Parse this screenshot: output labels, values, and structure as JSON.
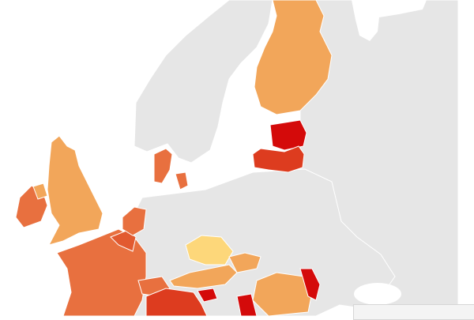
{
  "map": {
    "background": "#ffffff",
    "no_data_color": "#e6e6e6",
    "scale_colors": [
      "#fdd77a",
      "#f2a65a",
      "#e8703f",
      "#dd3c1f",
      "#d40a0a"
    ],
    "regions": [
      {
        "id": "finland",
        "fill": "#f2a65a"
      },
      {
        "id": "estonia",
        "fill": "#d40a0a"
      },
      {
        "id": "latvia",
        "fill": "#dd3c1f"
      },
      {
        "id": "denmark",
        "fill": "#e8703f"
      },
      {
        "id": "uk",
        "fill": "#f2a65a"
      },
      {
        "id": "ireland",
        "fill": "#e8703f"
      },
      {
        "id": "northern-ireland",
        "fill": "#f2a65a"
      },
      {
        "id": "france",
        "fill": "#e8703f"
      },
      {
        "id": "belgium",
        "fill": "#e25a30"
      },
      {
        "id": "netherlands",
        "fill": "#e8703f"
      },
      {
        "id": "czechia",
        "fill": "#fdd77a"
      },
      {
        "id": "austria",
        "fill": "#f2a65a"
      },
      {
        "id": "slovakia",
        "fill": "#f2a65a"
      },
      {
        "id": "switzerland",
        "fill": "#e8703f"
      },
      {
        "id": "slovenia",
        "fill": "#d40a0a"
      },
      {
        "id": "italy",
        "fill": "#dd3c1f"
      },
      {
        "id": "romania",
        "fill": "#f2a65a"
      },
      {
        "id": "moldova",
        "fill": "#d40a0a"
      },
      {
        "id": "serbia",
        "fill": "#d40a0a"
      }
    ]
  }
}
